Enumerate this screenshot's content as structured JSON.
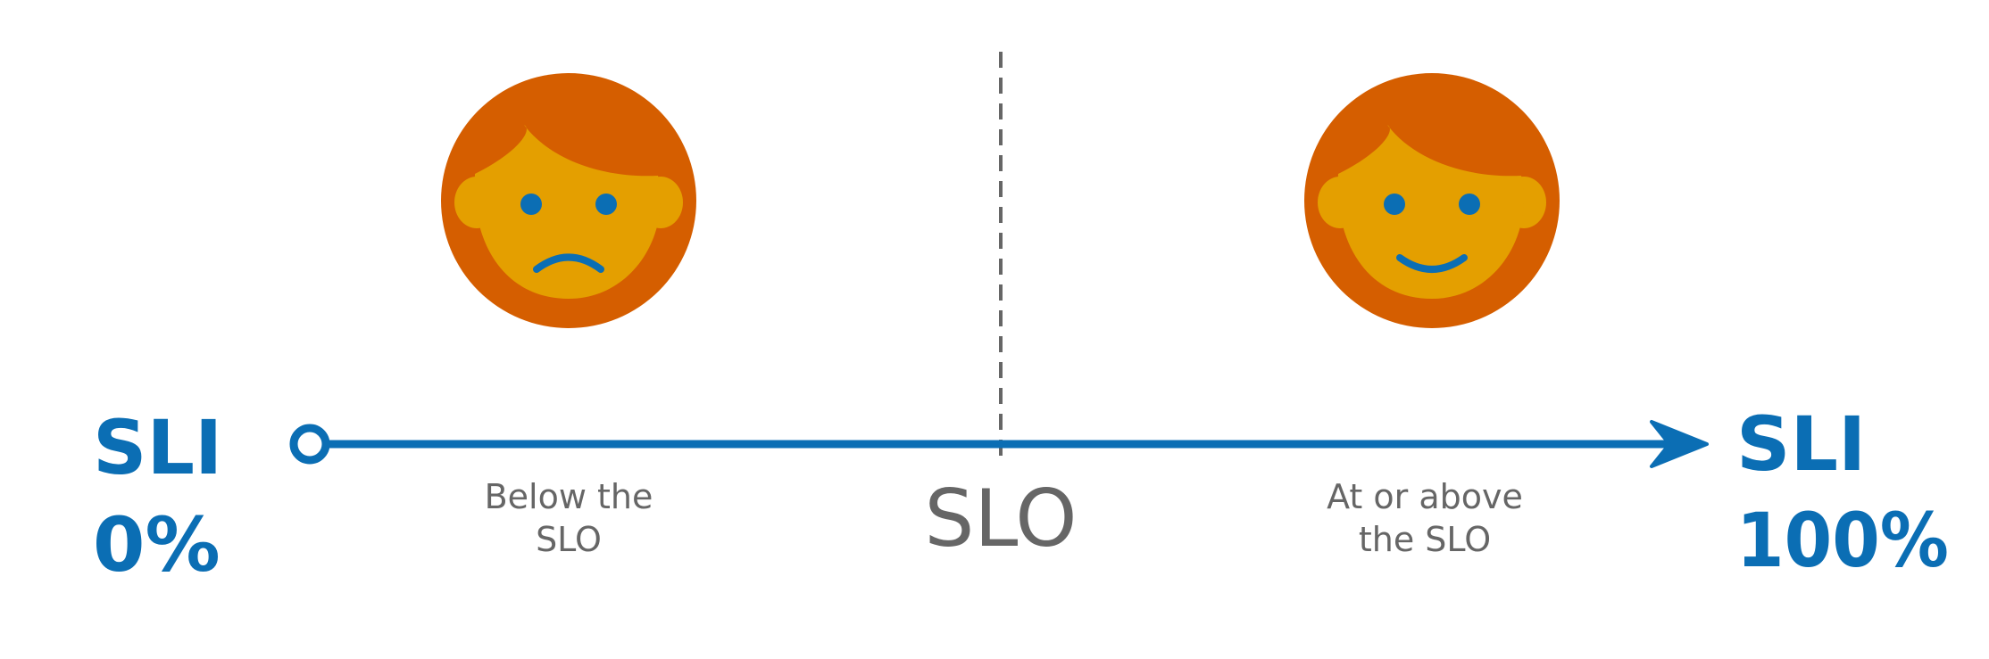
{
  "left_end": {
    "line1": "SLI",
    "line2": "0%"
  },
  "right_end": {
    "line1": "SLI",
    "line2": "100%"
  },
  "threshold_label": "SLO",
  "below_zone": {
    "line1": "Below the",
    "line2": "SLO"
  },
  "above_zone": {
    "line1": "At or above",
    "line2": "the SLO"
  },
  "faces": {
    "below": {
      "mood": "sad",
      "icon": "sad-face-icon"
    },
    "above": {
      "mood": "happy",
      "icon": "happy-face-icon"
    }
  },
  "colors": {
    "axis": "#0b6eb4",
    "label_blue": "#0b6eb4",
    "gray_text": "#666666",
    "dashed_line": "#666666",
    "hair": "#d55e00",
    "skin": "#e49f00",
    "features": "#0b6eb4"
  }
}
